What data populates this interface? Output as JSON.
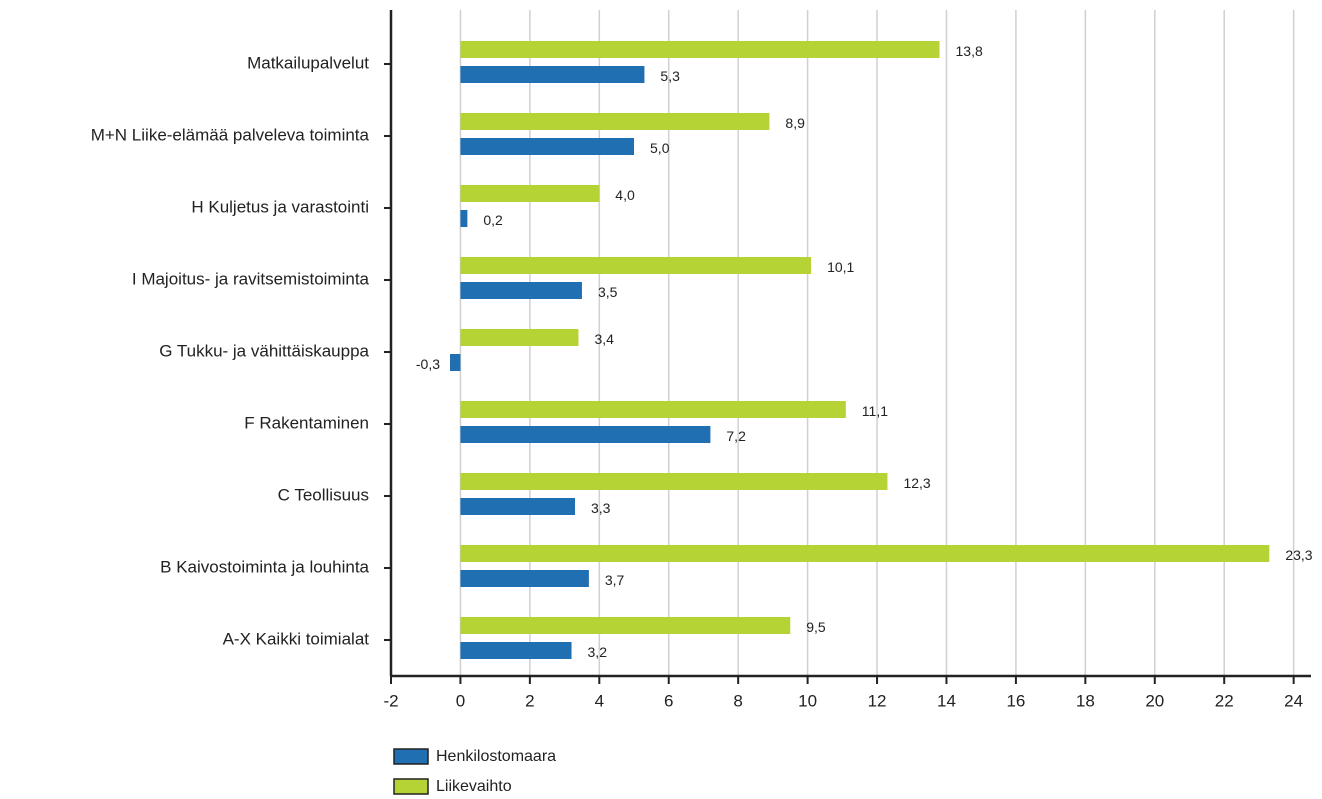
{
  "chart_data": {
    "type": "hbar",
    "categories": [
      "Matkailupalvelut",
      "M+N Liike-elämää palveleva toiminta",
      "H Kuljetus ja varastointi",
      "I Majoitus- ja ravitsemistoiminta",
      "G Tukku- ja vähittäiskauppa",
      "F Rakentaminen",
      "C Teollisuus",
      "B Kaivostoiminta ja louhinta",
      "A-X Kaikki toimialat"
    ],
    "series": [
      {
        "name": "Henkilostomaara",
        "color": "#1f6fb2",
        "values": [
          5.3,
          5.0,
          0.2,
          3.5,
          -0.3,
          7.2,
          3.3,
          3.7,
          3.2
        ],
        "value_labels": [
          "5,3",
          "5,0",
          "0,2",
          "3,5",
          "-0,3",
          "7,2",
          "3,3",
          "3,7",
          "3,2"
        ]
      },
      {
        "name": "Liikevaihto",
        "color": "#b5d334",
        "values": [
          13.8,
          8.9,
          4.0,
          10.1,
          3.4,
          11.1,
          12.3,
          23.3,
          9.5
        ],
        "value_labels": [
          "13,8",
          "8,9",
          "4,0",
          "10,1",
          "3,4",
          "11,1",
          "12,3",
          "23,3",
          "9,5"
        ]
      }
    ],
    "xlim": [
      -2,
      24.5
    ],
    "xticks": [
      -2,
      0,
      2,
      4,
      6,
      8,
      10,
      12,
      14,
      16,
      18,
      20,
      22,
      24
    ],
    "grid": true,
    "legend": "bottom-left"
  }
}
